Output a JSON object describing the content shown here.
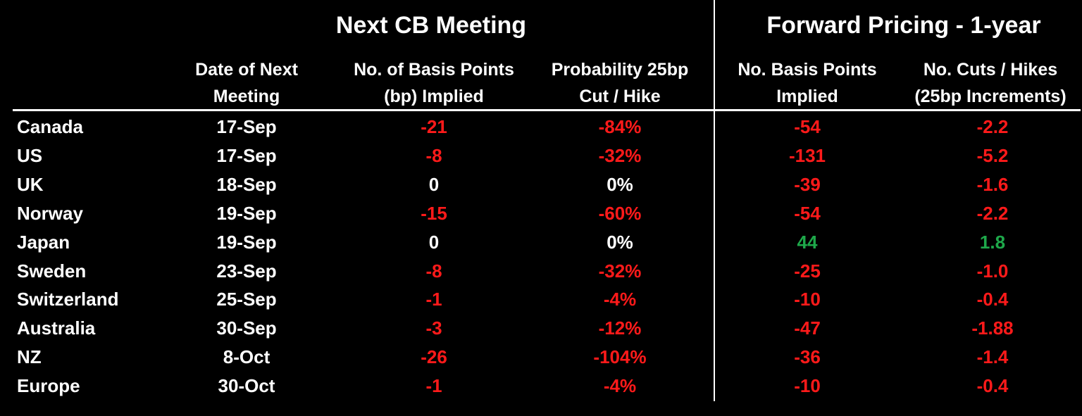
{
  "colors": {
    "background": "#000000",
    "text": "#ffffff",
    "negative": "#ff1a1a",
    "positive": "#1ea84a",
    "neutral": "#ffffff"
  },
  "groups": {
    "next_meeting": "Next CB Meeting",
    "forward_pricing": "Forward Pricing - 1-year"
  },
  "headers": {
    "date": [
      "Date of Next",
      "Meeting"
    ],
    "bp_implied": [
      "No. of Basis Points",
      "(bp) Implied"
    ],
    "probability": [
      "Probability 25bp",
      "Cut / Hike"
    ],
    "fwd_bp": [
      "No. Basis Points",
      "Implied"
    ],
    "cuts_hikes": [
      "No. Cuts / Hikes",
      "(25bp Increments)"
    ]
  },
  "rows": [
    {
      "country": "Canada",
      "date": "17-Sep",
      "bp": "-21",
      "prob": "-84%",
      "fwd": "-54",
      "cuts": "-2.2"
    },
    {
      "country": "US",
      "date": "17-Sep",
      "bp": "-8",
      "prob": "-32%",
      "fwd": "-131",
      "cuts": "-5.2"
    },
    {
      "country": "UK",
      "date": "18-Sep",
      "bp": "0",
      "prob": "0%",
      "fwd": "-39",
      "cuts": "-1.6"
    },
    {
      "country": "Norway",
      "date": "19-Sep",
      "bp": "-15",
      "prob": "-60%",
      "fwd": "-54",
      "cuts": "-2.2"
    },
    {
      "country": "Japan",
      "date": "19-Sep",
      "bp": "0",
      "prob": "0%",
      "fwd": "44",
      "cuts": "1.8"
    },
    {
      "country": "Sweden",
      "date": "23-Sep",
      "bp": "-8",
      "prob": "-32%",
      "fwd": "-25",
      "cuts": "-1.0"
    },
    {
      "country": "Switzerland",
      "date": "25-Sep",
      "bp": "-1",
      "prob": "-4%",
      "fwd": "-10",
      "cuts": "-0.4"
    },
    {
      "country": "Australia",
      "date": "30-Sep",
      "bp": "-3",
      "prob": "-12%",
      "fwd": "-47",
      "cuts": "-1.88"
    },
    {
      "country": "NZ",
      "date": "8-Oct",
      "bp": "-26",
      "prob": "-104%",
      "fwd": "-36",
      "cuts": "-1.4"
    },
    {
      "country": "Europe",
      "date": "30-Oct",
      "bp": "-1",
      "prob": "-4%",
      "fwd": "-10",
      "cuts": "-0.4"
    }
  ]
}
